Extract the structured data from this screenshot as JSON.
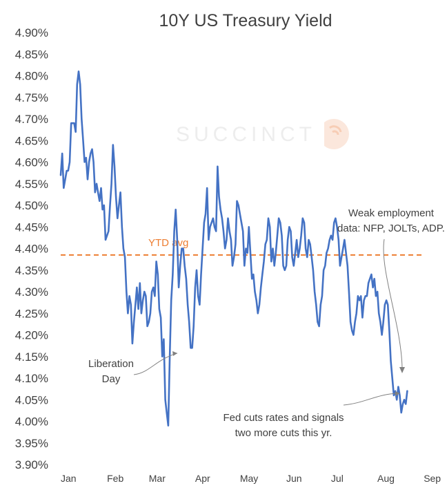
{
  "chart_data": {
    "type": "line",
    "title": "10Y US Treasury Yield",
    "xlabel": "",
    "ylabel": "",
    "ylim": [
      3.9,
      4.9
    ],
    "y_tick_step": 0.05,
    "y_tick_format": "percent_2dp",
    "x_domain_days": [
      0,
      260
    ],
    "months": [
      {
        "label": "Jan",
        "day": 0
      },
      {
        "label": "Feb",
        "day": 31
      },
      {
        "label": "Mar",
        "day": 59
      },
      {
        "label": "Apr",
        "day": 90
      },
      {
        "label": "May",
        "day": 120
      },
      {
        "label": "Jun",
        "day": 151
      },
      {
        "label": "Jul",
        "day": 181
      },
      {
        "label": "Aug",
        "day": 212
      },
      {
        "label": "Sep",
        "day": 243
      }
    ],
    "series": [
      {
        "name": "10Y US Treasury Yield",
        "color": "#4472c4",
        "points": [
          [
            0,
            4.57
          ],
          [
            1,
            4.62
          ],
          [
            2,
            4.54
          ],
          [
            3,
            4.56
          ],
          [
            4,
            4.58
          ],
          [
            5,
            4.58
          ],
          [
            6,
            4.6
          ],
          [
            7,
            4.69
          ],
          [
            8,
            4.69
          ],
          [
            9,
            4.69
          ],
          [
            10,
            4.67
          ],
          [
            11,
            4.78
          ],
          [
            12,
            4.81
          ],
          [
            13,
            4.78
          ],
          [
            14,
            4.7
          ],
          [
            15,
            4.65
          ],
          [
            16,
            4.6
          ],
          [
            17,
            4.61
          ],
          [
            18,
            4.56
          ],
          [
            19,
            4.6
          ],
          [
            20,
            4.62
          ],
          [
            21,
            4.63
          ],
          [
            22,
            4.6
          ],
          [
            23,
            4.53
          ],
          [
            24,
            4.55
          ],
          [
            25,
            4.53
          ],
          [
            26,
            4.51
          ],
          [
            27,
            4.54
          ],
          [
            28,
            4.49
          ],
          [
            29,
            4.5
          ],
          [
            30,
            4.42
          ],
          [
            31,
            4.43
          ],
          [
            32,
            4.44
          ],
          [
            33,
            4.5
          ],
          [
            34,
            4.55
          ],
          [
            35,
            4.64
          ],
          [
            36,
            4.59
          ],
          [
            37,
            4.52
          ],
          [
            38,
            4.47
          ],
          [
            39,
            4.5
          ],
          [
            40,
            4.53
          ],
          [
            41,
            4.45
          ],
          [
            42,
            4.4
          ],
          [
            43,
            4.38
          ],
          [
            44,
            4.3
          ],
          [
            45,
            4.25
          ],
          [
            46,
            4.29
          ],
          [
            47,
            4.27
          ],
          [
            48,
            4.18
          ],
          [
            49,
            4.23
          ],
          [
            50,
            4.27
          ],
          [
            51,
            4.31
          ],
          [
            52,
            4.26
          ],
          [
            53,
            4.32
          ],
          [
            54,
            4.25
          ],
          [
            55,
            4.28
          ],
          [
            56,
            4.3
          ],
          [
            57,
            4.29
          ],
          [
            58,
            4.22
          ],
          [
            59,
            4.23
          ],
          [
            60,
            4.25
          ],
          [
            61,
            4.3
          ],
          [
            62,
            4.31
          ],
          [
            63,
            4.29
          ],
          [
            64,
            4.37
          ],
          [
            65,
            4.34
          ],
          [
            66,
            4.26
          ],
          [
            67,
            4.24
          ],
          [
            68,
            4.15
          ],
          [
            69,
            4.19
          ],
          [
            70,
            4.05
          ],
          [
            71,
            4.02
          ],
          [
            72,
            3.99
          ],
          [
            73,
            4.15
          ],
          [
            74,
            4.28
          ],
          [
            75,
            4.34
          ],
          [
            76,
            4.44
          ],
          [
            77,
            4.49
          ],
          [
            78,
            4.42
          ],
          [
            79,
            4.31
          ],
          [
            80,
            4.36
          ],
          [
            81,
            4.4
          ],
          [
            82,
            4.4
          ],
          [
            83,
            4.36
          ],
          [
            84,
            4.33
          ],
          [
            85,
            4.27
          ],
          [
            86,
            4.23
          ],
          [
            87,
            4.17
          ],
          [
            88,
            4.17
          ],
          [
            89,
            4.22
          ],
          [
            90,
            4.31
          ],
          [
            91,
            4.35
          ],
          [
            92,
            4.29
          ],
          [
            93,
            4.27
          ],
          [
            94,
            4.34
          ],
          [
            95,
            4.4
          ],
          [
            96,
            4.46
          ],
          [
            97,
            4.48
          ],
          [
            98,
            4.54
          ],
          [
            99,
            4.42
          ],
          [
            100,
            4.45
          ],
          [
            101,
            4.46
          ],
          [
            102,
            4.47
          ],
          [
            103,
            4.45
          ],
          [
            104,
            4.44
          ],
          [
            105,
            4.59
          ],
          [
            106,
            4.52
          ],
          [
            107,
            4.49
          ],
          [
            108,
            4.47
          ],
          [
            109,
            4.44
          ],
          [
            110,
            4.4
          ],
          [
            111,
            4.42
          ],
          [
            112,
            4.47
          ],
          [
            113,
            4.44
          ],
          [
            114,
            4.42
          ],
          [
            115,
            4.36
          ],
          [
            116,
            4.38
          ],
          [
            117,
            4.41
          ],
          [
            118,
            4.51
          ],
          [
            119,
            4.5
          ],
          [
            120,
            4.48
          ],
          [
            121,
            4.46
          ],
          [
            122,
            4.44
          ],
          [
            123,
            4.36
          ],
          [
            124,
            4.4
          ],
          [
            125,
            4.39
          ],
          [
            126,
            4.45
          ],
          [
            127,
            4.39
          ],
          [
            128,
            4.33
          ],
          [
            129,
            4.34
          ],
          [
            130,
            4.3
          ],
          [
            131,
            4.28
          ],
          [
            132,
            4.25
          ],
          [
            133,
            4.27
          ],
          [
            134,
            4.31
          ],
          [
            135,
            4.34
          ],
          [
            136,
            4.37
          ],
          [
            137,
            4.41
          ],
          [
            138,
            4.42
          ],
          [
            139,
            4.47
          ],
          [
            140,
            4.45
          ],
          [
            141,
            4.37
          ],
          [
            142,
            4.4
          ],
          [
            143,
            4.36
          ],
          [
            144,
            4.39
          ],
          [
            145,
            4.43
          ],
          [
            146,
            4.47
          ],
          [
            147,
            4.46
          ],
          [
            148,
            4.43
          ],
          [
            149,
            4.36
          ],
          [
            150,
            4.35
          ],
          [
            151,
            4.36
          ],
          [
            152,
            4.42
          ],
          [
            153,
            4.45
          ],
          [
            154,
            4.44
          ],
          [
            155,
            4.38
          ],
          [
            156,
            4.36
          ],
          [
            157,
            4.39
          ],
          [
            158,
            4.42
          ],
          [
            159,
            4.38
          ],
          [
            160,
            4.4
          ],
          [
            161,
            4.43
          ],
          [
            162,
            4.47
          ],
          [
            163,
            4.46
          ],
          [
            164,
            4.4
          ],
          [
            165,
            4.38
          ],
          [
            166,
            4.42
          ],
          [
            167,
            4.41
          ],
          [
            168,
            4.38
          ],
          [
            169,
            4.35
          ],
          [
            170,
            4.3
          ],
          [
            171,
            4.27
          ],
          [
            172,
            4.23
          ],
          [
            173,
            4.22
          ],
          [
            174,
            4.27
          ],
          [
            175,
            4.29
          ],
          [
            176,
            4.35
          ],
          [
            177,
            4.36
          ],
          [
            178,
            4.39
          ],
          [
            179,
            4.4
          ],
          [
            180,
            4.42
          ],
          [
            181,
            4.43
          ],
          [
            182,
            4.42
          ],
          [
            183,
            4.46
          ],
          [
            184,
            4.47
          ],
          [
            185,
            4.45
          ],
          [
            186,
            4.42
          ],
          [
            187,
            4.36
          ],
          [
            188,
            4.38
          ],
          [
            189,
            4.4
          ],
          [
            190,
            4.42
          ],
          [
            191,
            4.39
          ],
          [
            192,
            4.36
          ],
          [
            193,
            4.3
          ],
          [
            194,
            4.23
          ],
          [
            195,
            4.21
          ],
          [
            196,
            4.2
          ],
          [
            197,
            4.23
          ],
          [
            198,
            4.25
          ],
          [
            199,
            4.29
          ],
          [
            200,
            4.28
          ],
          [
            201,
            4.29
          ],
          [
            202,
            4.24
          ],
          [
            203,
            4.28
          ],
          [
            204,
            4.29
          ],
          [
            205,
            4.29
          ],
          [
            206,
            4.32
          ],
          [
            207,
            4.33
          ],
          [
            208,
            4.34
          ],
          [
            209,
            4.31
          ],
          [
            210,
            4.33
          ],
          [
            211,
            4.29
          ],
          [
            212,
            4.3
          ],
          [
            213,
            4.25
          ],
          [
            214,
            4.23
          ],
          [
            215,
            4.2
          ],
          [
            216,
            4.23
          ],
          [
            217,
            4.27
          ],
          [
            218,
            4.28
          ],
          [
            219,
            4.27
          ],
          [
            220,
            4.21
          ],
          [
            221,
            4.14
          ],
          [
            222,
            4.1
          ],
          [
            223,
            4.06
          ],
          [
            224,
            4.07
          ],
          [
            225,
            4.05
          ],
          [
            226,
            4.08
          ],
          [
            227,
            4.06
          ],
          [
            228,
            4.02
          ],
          [
            229,
            4.04
          ],
          [
            230,
            4.05
          ],
          [
            231,
            4.04
          ],
          [
            232,
            4.07
          ]
        ]
      }
    ],
    "reference_line": {
      "label": "YTD avg",
      "value": 4.385,
      "color": "#ed7d31",
      "style": "dashed"
    },
    "annotations": [
      {
        "name": "liberation-day",
        "lines": [
          "Liberation",
          "Day"
        ]
      },
      {
        "name": "weak-employment",
        "lines": [
          "Weak employment",
          "data: NFP, JOLTs, ADP."
        ]
      },
      {
        "name": "fed-cuts",
        "lines": [
          "Fed cuts rates and signals",
          "two more cuts this yr."
        ]
      }
    ],
    "watermark": "SUCCINCT"
  }
}
